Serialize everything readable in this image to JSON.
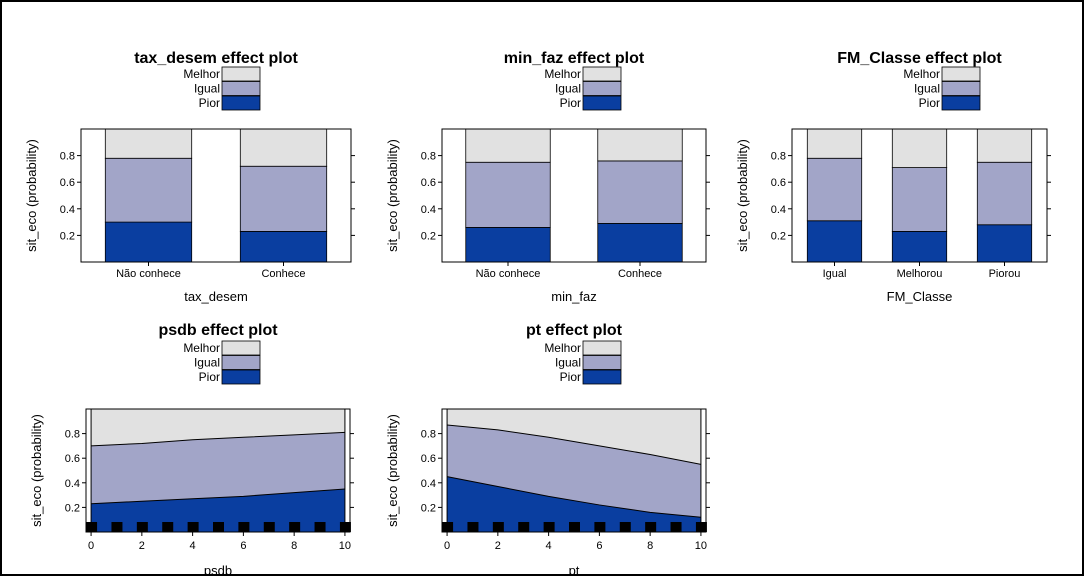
{
  "colors": {
    "melhor": "#e1e1e1",
    "igual": "#a2a5c8",
    "pior": "#0a3ea0",
    "border": "#000000"
  },
  "chart_data": [
    {
      "type": "bar",
      "title": "tax_desem effect plot",
      "xlabel": "tax_desem",
      "ylabel": "sit_eco (probability)",
      "legend": [
        "Melhor",
        "Igual",
        "Pior"
      ],
      "categories": [
        "Não conhece",
        "Conhece"
      ],
      "yticks": [
        "0.2",
        "0.4",
        "0.6",
        "0.8"
      ],
      "ylim": [
        0,
        1
      ],
      "series": [
        {
          "name": "Pior",
          "values": [
            0.3,
            0.23
          ]
        },
        {
          "name": "Igual",
          "values": [
            0.48,
            0.49
          ]
        },
        {
          "name": "Melhor",
          "values": [
            0.22,
            0.28
          ]
        }
      ]
    },
    {
      "type": "bar",
      "title": "min_faz effect plot",
      "xlabel": "min_faz",
      "ylabel": "sit_eco (probability)",
      "legend": [
        "Melhor",
        "Igual",
        "Pior"
      ],
      "categories": [
        "Não conhece",
        "Conhece"
      ],
      "yticks": [
        "0.2",
        "0.4",
        "0.6",
        "0.8"
      ],
      "ylim": [
        0,
        1
      ],
      "series": [
        {
          "name": "Pior",
          "values": [
            0.26,
            0.29
          ]
        },
        {
          "name": "Igual",
          "values": [
            0.49,
            0.47
          ]
        },
        {
          "name": "Melhor",
          "values": [
            0.25,
            0.24
          ]
        }
      ]
    },
    {
      "type": "bar",
      "title": "FM_Classe effect plot",
      "xlabel": "FM_Classe",
      "ylabel": "sit_eco (probability)",
      "legend": [
        "Melhor",
        "Igual",
        "Pior"
      ],
      "categories": [
        "Igual",
        "Melhorou",
        "Piorou"
      ],
      "yticks": [
        "0.2",
        "0.4",
        "0.6",
        "0.8"
      ],
      "ylim": [
        0,
        1
      ],
      "series": [
        {
          "name": "Pior",
          "values": [
            0.31,
            0.23,
            0.28
          ]
        },
        {
          "name": "Igual",
          "values": [
            0.47,
            0.48,
            0.47
          ]
        },
        {
          "name": "Melhor",
          "values": [
            0.22,
            0.29,
            0.25
          ]
        }
      ]
    },
    {
      "type": "area",
      "title": "psdb effect plot",
      "xlabel": "psdb",
      "ylabel": "sit_eco (probability)",
      "legend": [
        "Melhor",
        "Igual",
        "Pior"
      ],
      "x": [
        0,
        2,
        4,
        6,
        8,
        10
      ],
      "xticks": [
        "0",
        "2",
        "4",
        "6",
        "8",
        "10"
      ],
      "yticks": [
        "0.2",
        "0.4",
        "0.6",
        "0.8"
      ],
      "xlim": [
        -0.2,
        10.2
      ],
      "ylim": [
        0,
        1
      ],
      "rug": [
        0,
        1,
        2,
        3,
        4,
        5,
        6,
        7,
        8,
        9,
        10
      ],
      "series": [
        {
          "name": "Pior",
          "values": [
            0.23,
            0.25,
            0.27,
            0.29,
            0.32,
            0.35
          ]
        },
        {
          "name": "Pior+Igual",
          "values": [
            0.7,
            0.72,
            0.75,
            0.77,
            0.79,
            0.81
          ]
        }
      ]
    },
    {
      "type": "area",
      "title": "pt effect plot",
      "xlabel": "pt",
      "ylabel": "sit_eco (probability)",
      "legend": [
        "Melhor",
        "Igual",
        "Pior"
      ],
      "x": [
        0,
        2,
        4,
        6,
        8,
        10
      ],
      "xticks": [
        "0",
        "2",
        "4",
        "6",
        "8",
        "10"
      ],
      "yticks": [
        "0.2",
        "0.4",
        "0.6",
        "0.8"
      ],
      "xlim": [
        -0.2,
        10.2
      ],
      "ylim": [
        0,
        1
      ],
      "rug": [
        0,
        1,
        2,
        3,
        4,
        5,
        6,
        7,
        8,
        9,
        10
      ],
      "series": [
        {
          "name": "Pior",
          "values": [
            0.45,
            0.37,
            0.29,
            0.22,
            0.16,
            0.12
          ]
        },
        {
          "name": "Pior+Igual",
          "values": [
            0.87,
            0.83,
            0.77,
            0.7,
            0.63,
            0.55
          ]
        }
      ]
    }
  ]
}
